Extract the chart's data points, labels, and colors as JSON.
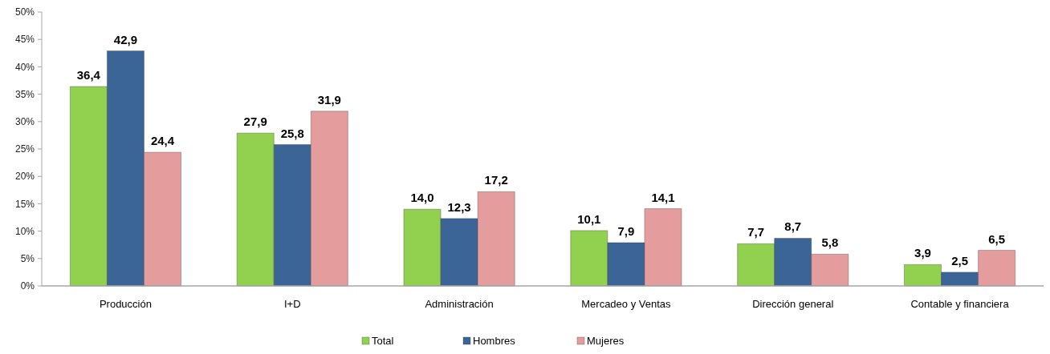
{
  "chart_data": {
    "type": "bar",
    "categories": [
      "Producción",
      "I+D",
      "Administración",
      "Mercadeo y Ventas",
      "Dirección general",
      "Contable y financiera"
    ],
    "series": [
      {
        "name": "Total",
        "color": "#92d050",
        "values": [
          36.4,
          27.9,
          14.0,
          10.1,
          7.7,
          3.9
        ],
        "value_labels": [
          "36,4",
          "27,9",
          "14,0",
          "10,1",
          "7,7",
          "3,9"
        ]
      },
      {
        "name": "Hombres",
        "color": "#3b6597",
        "values": [
          42.9,
          25.8,
          12.3,
          7.9,
          8.7,
          2.5
        ],
        "value_labels": [
          "42,9",
          "25,8",
          "12,3",
          "7,9",
          "8,7",
          "2,5"
        ]
      },
      {
        "name": "Mujeres",
        "color": "#e59c9c",
        "values": [
          24.4,
          31.9,
          17.2,
          14.1,
          5.8,
          6.5
        ],
        "value_labels": [
          "24,4",
          "31,9",
          "17,2",
          "14,1",
          "5,8",
          "6,5"
        ]
      }
    ],
    "ylim": [
      0,
      50
    ],
    "yticks": [
      {
        "value": 0,
        "label": "0%"
      },
      {
        "value": 5,
        "label": "5%"
      },
      {
        "value": 10,
        "label": "10%"
      },
      {
        "value": 15,
        "label": "15%"
      },
      {
        "value": 20,
        "label": "20%"
      },
      {
        "value": 25,
        "label": "25%"
      },
      {
        "value": 30,
        "label": "30%"
      },
      {
        "value": 35,
        "label": "35%"
      },
      {
        "value": 40,
        "label": "40%"
      },
      {
        "value": 45,
        "label": "45%"
      },
      {
        "value": 50,
        "label": "50%"
      }
    ],
    "legend": "bottom"
  }
}
